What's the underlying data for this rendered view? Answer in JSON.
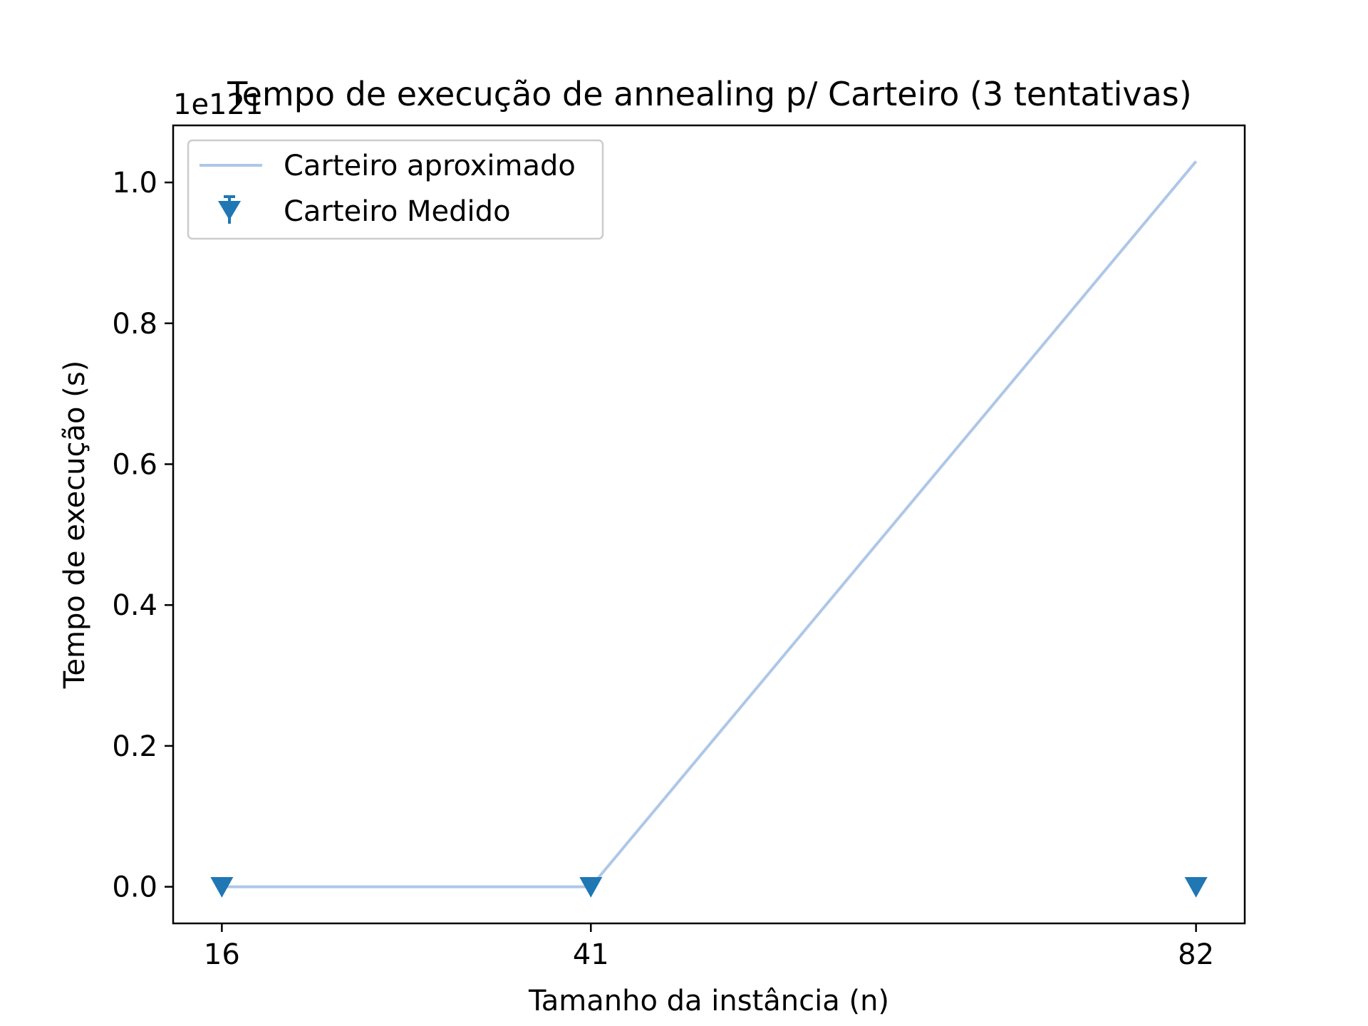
{
  "chart_data": {
    "type": "line",
    "title": "Tempo de execução de annealing p/ Carteiro (3 tentativas)",
    "xlabel": "Tamanho da instância (n)",
    "ylabel": "Tempo de execução (s)",
    "y_offset_text": "1e121",
    "x_ticks": [
      16,
      41,
      82
    ],
    "x_tick_labels": [
      "16",
      "41",
      "82"
    ],
    "y_ticks": [
      0.0,
      0.2,
      0.4,
      0.6,
      0.8,
      1.0
    ],
    "y_tick_labels": [
      "0.0",
      "0.2",
      "0.4",
      "0.6",
      "0.8",
      "1.0"
    ],
    "xlim": [
      12.7,
      85.3
    ],
    "ylim": [
      -0.052,
      1.081
    ],
    "y_scale_note": "values in units of 1e121",
    "grid": false,
    "legend_position": "upper-left",
    "series": [
      {
        "name": "Carteiro aproximado",
        "style": "line",
        "color": "#aec7e8",
        "x": [
          16,
          41,
          82
        ],
        "y": [
          0.0,
          0.0,
          1.03
        ]
      },
      {
        "name": "Carteiro Medido",
        "style": "markers",
        "marker": "triangle-down",
        "color": "#1f77b4",
        "x": [
          16,
          41,
          82
        ],
        "y": [
          0.0,
          0.0,
          0.0
        ]
      }
    ]
  }
}
